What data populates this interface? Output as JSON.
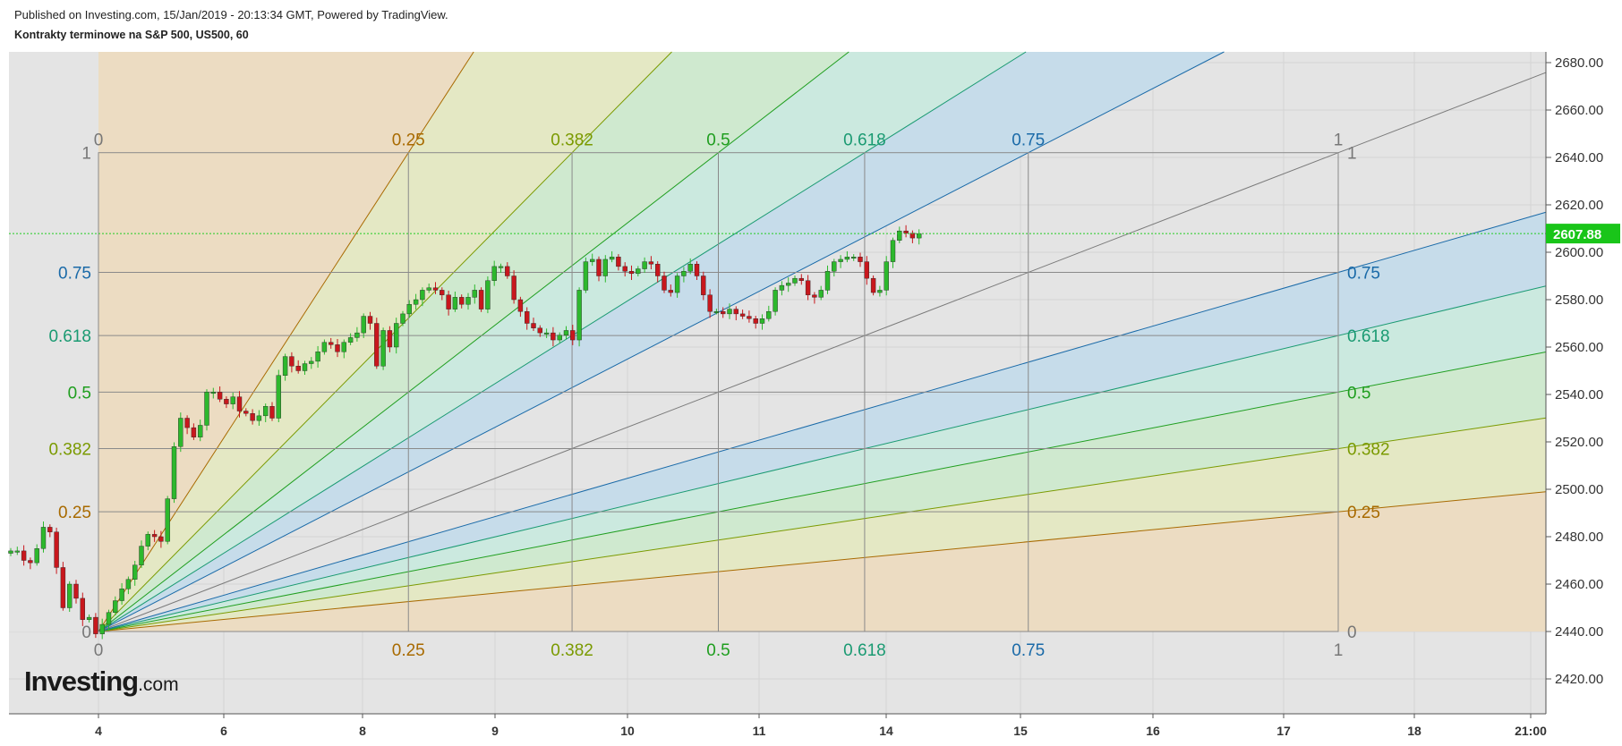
{
  "header": {
    "published": "Published on Investing.com, 15/Jan/2019 - 20:13:34 GMT, Powered by TradingView.",
    "title": "Kontrakty terminowe na S&P 500, US500, 60"
  },
  "logo": {
    "main": "Investing",
    "suffix": ".com"
  },
  "colors": {
    "background": "#e4e4e4",
    "grid": "#d4d4d4",
    "up_candle": "#2db82d",
    "down_candle": "#c8171d",
    "current_price_line": "#22cc22",
    "current_price_badge": "#19c519",
    "level_025": "#a86a00",
    "level_0382": "#7a9a00",
    "level_05": "#1f9e1f",
    "level_0618": "#1a9a72",
    "level_075": "#1a6aa8",
    "level_1": "#888888"
  },
  "chart_data": {
    "type": "candlestick",
    "symbol": "US500",
    "interval": "60",
    "y_axis": {
      "ylim": [
        2410,
        2685
      ],
      "ticks": [
        "2420.00",
        "2440.00",
        "2460.00",
        "2480.00",
        "2500.00",
        "2520.00",
        "2540.00",
        "2560.00",
        "2580.00",
        "2600.00",
        "2620.00",
        "2640.00",
        "2660.00",
        "2680.00"
      ]
    },
    "x_axis": {
      "ticks": [
        "4",
        "6",
        "8",
        "9",
        "10",
        "11",
        "14",
        "15",
        "16",
        "17",
        "18",
        "21:00"
      ]
    },
    "current_price": "2607.88",
    "fib_levels": [
      "0",
      "0.25",
      "0.382",
      "0.5",
      "0.618",
      "0.75",
      "1"
    ],
    "gann_fan": {
      "origin": {
        "date": "Jan 4",
        "price": 2440
      },
      "corner": {
        "date": "Jan 17",
        "price": 2642
      },
      "levels_top": [
        "0",
        "0.25",
        "0.382",
        "0.5",
        "0.618",
        "0.75",
        "1"
      ],
      "levels_bottom": [
        "0",
        "0.25",
        "0.382",
        "0.5",
        "0.618",
        "0.75",
        "1"
      ],
      "levels_left": [
        "1",
        "0.75",
        "0.618",
        "0.5",
        "0.382",
        "0.25",
        "0"
      ],
      "levels_right": [
        "1",
        "0.75",
        "0.618",
        "0.5",
        "0.382",
        "0.25",
        "0"
      ]
    },
    "price_path": [
      2474,
      2474,
      2470,
      2469,
      2475,
      2484,
      2482,
      2467,
      2450,
      2460,
      2454,
      2445,
      2446,
      2439,
      2443,
      2448,
      2453,
      2458,
      2462,
      2468,
      2476,
      2481,
      2480,
      2478,
      2496,
      2518,
      2530,
      2526,
      2522,
      2527,
      2541,
      2541,
      2538,
      2536,
      2539,
      2533,
      2532,
      2529,
      2531,
      2535,
      2530,
      2548,
      2556,
      2552,
      2550,
      2553,
      2554,
      2558,
      2562,
      2561,
      2558,
      2562,
      2564,
      2566,
      2573,
      2570,
      2552,
      2567,
      2560,
      2570,
      2574,
      2578,
      2580,
      2584,
      2585,
      2584,
      2582,
      2576,
      2581,
      2578,
      2581,
      2584,
      2576,
      2588,
      2594,
      2594,
      2590,
      2580,
      2575,
      2570,
      2568,
      2566,
      2566,
      2563,
      2565,
      2567,
      2563,
      2584,
      2596,
      2597,
      2590,
      2597,
      2598,
      2594,
      2592,
      2591,
      2593,
      2596,
      2595,
      2590,
      2584,
      2583,
      2590,
      2592,
      2595,
      2590,
      2582,
      2575,
      2575,
      2574,
      2576,
      2574,
      2573,
      2572,
      2570,
      2572,
      2575,
      2584,
      2586,
      2587,
      2589,
      2588,
      2582,
      2581,
      2584,
      2592,
      2596,
      2597,
      2598,
      2598,
      2596,
      2589,
      2583,
      2584,
      2596,
      2605,
      2609,
      2608,
      2606,
      2607.88
    ]
  }
}
